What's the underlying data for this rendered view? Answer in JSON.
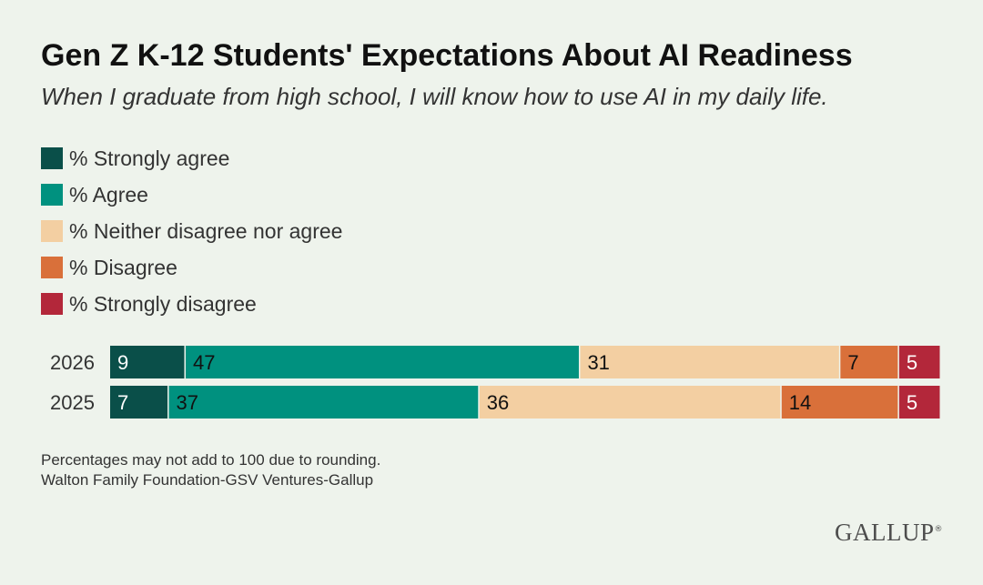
{
  "header": {
    "title": "Gen Z K-12 Students' Expectations About AI Readiness",
    "subtitle": "When I graduate from high school, I will know how to use AI in my daily life."
  },
  "legend": [
    {
      "label": "% Strongly agree",
      "color": "#0a4f49"
    },
    {
      "label": "% Agree",
      "color": "#00917f"
    },
    {
      "label": "% Neither disagree nor agree",
      "color": "#f3cfa2"
    },
    {
      "label": "% Disagree",
      "color": "#d9703a"
    },
    {
      "label": "% Strongly disagree",
      "color": "#b3273a"
    }
  ],
  "chart_data": {
    "type": "bar",
    "orientation": "horizontal",
    "stacked": true,
    "title": "Gen Z K-12 Students' Expectations About AI Readiness",
    "subtitle": "When I graduate from high school, I will know how to use AI in my daily life.",
    "categories": [
      "2026",
      "2025"
    ],
    "series": [
      {
        "name": "% Strongly agree",
        "values": [
          9,
          7
        ],
        "color": "#0a4f49",
        "label_color": "#ffffff"
      },
      {
        "name": "% Agree",
        "values": [
          47,
          37
        ],
        "color": "#00917f",
        "label_color": "#111111"
      },
      {
        "name": "% Neither disagree nor agree",
        "values": [
          31,
          36
        ],
        "color": "#f3cfa2",
        "label_color": "#111111"
      },
      {
        "name": "% Disagree",
        "values": [
          7,
          14
        ],
        "color": "#d9703a",
        "label_color": "#111111"
      },
      {
        "name": "% Strongly disagree",
        "values": [
          5,
          5
        ],
        "color": "#b3273a",
        "label_color": "#ffffff"
      }
    ],
    "xlim": [
      0,
      99
    ],
    "grid": false,
    "legend_position": "top-left"
  },
  "footer": {
    "note": "Percentages may not add to 100 due to rounding.",
    "source": "Walton Family Foundation-GSV Ventures-Gallup",
    "logo_text": "GALLUP",
    "logo_mark": "®"
  }
}
